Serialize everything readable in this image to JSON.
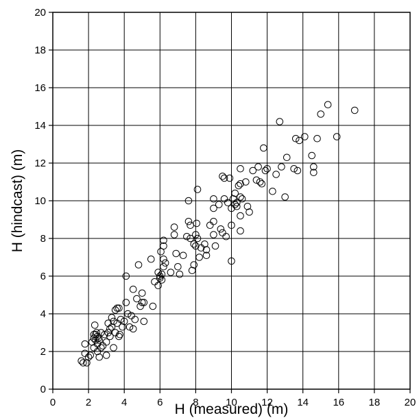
{
  "chart_data": {
    "type": "scatter",
    "title": "",
    "xlabel": "H (measured) (m)",
    "ylabel": "H (hindcast) (m)",
    "xlim": [
      0,
      20
    ],
    "ylim": [
      0,
      20
    ],
    "xticks": [
      "0",
      "2",
      "4",
      "6",
      "8",
      "10",
      "12",
      "14",
      "16",
      "18",
      "20"
    ],
    "yticks": [
      "0",
      "2",
      "4",
      "6",
      "8",
      "10",
      "12",
      "14",
      "16",
      "18",
      "20"
    ],
    "grid": true,
    "marker": "open-circle",
    "colors": {
      "axis": "#000000",
      "grid": "#000000",
      "marker": "#000000"
    },
    "points": [
      [
        1.6,
        1.5
      ],
      [
        1.7,
        1.4
      ],
      [
        1.8,
        1.9
      ],
      [
        1.8,
        2.4
      ],
      [
        1.9,
        1.4
      ],
      [
        2.0,
        1.7
      ],
      [
        2.1,
        1.8
      ],
      [
        2.2,
        2.5
      ],
      [
        2.3,
        2.9
      ],
      [
        2.3,
        2.7
      ],
      [
        2.3,
        2.2
      ],
      [
        2.35,
        3.4
      ],
      [
        2.4,
        2.9
      ],
      [
        2.4,
        2.6
      ],
      [
        2.45,
        3.0
      ],
      [
        2.5,
        2.0
      ],
      [
        2.5,
        2.4
      ],
      [
        2.5,
        2.8
      ],
      [
        2.55,
        2.7
      ],
      [
        2.6,
        1.7
      ],
      [
        2.6,
        2.6
      ],
      [
        2.7,
        3.0
      ],
      [
        2.7,
        2.2
      ],
      [
        2.8,
        2.3
      ],
      [
        2.9,
        2.9
      ],
      [
        3.0,
        1.8
      ],
      [
        3.0,
        2.5
      ],
      [
        3.1,
        3.5
      ],
      [
        3.1,
        3.0
      ],
      [
        3.2,
        3.2
      ],
      [
        3.2,
        2.8
      ],
      [
        3.3,
        3.8
      ],
      [
        3.3,
        3.3
      ],
      [
        3.4,
        2.2
      ],
      [
        3.4,
        3.6
      ],
      [
        3.5,
        3.0
      ],
      [
        3.5,
        4.2
      ],
      [
        3.6,
        4.3
      ],
      [
        3.6,
        3.5
      ],
      [
        3.7,
        4.3
      ],
      [
        3.7,
        2.8
      ],
      [
        3.75,
        2.9
      ],
      [
        3.8,
        3.7
      ],
      [
        3.9,
        3.3
      ],
      [
        4.0,
        3.6
      ],
      [
        4.1,
        6.0
      ],
      [
        4.1,
        4.6
      ],
      [
        4.2,
        4.0
      ],
      [
        4.3,
        3.3
      ],
      [
        4.4,
        3.9
      ],
      [
        4.5,
        3.2
      ],
      [
        4.5,
        5.3
      ],
      [
        4.6,
        3.7
      ],
      [
        4.7,
        4.8
      ],
      [
        4.8,
        6.6
      ],
      [
        4.9,
        4.4
      ],
      [
        5.0,
        4.6
      ],
      [
        5.0,
        5.1
      ],
      [
        5.1,
        3.6
      ],
      [
        5.1,
        4.6
      ],
      [
        5.5,
        6.9
      ],
      [
        5.6,
        4.4
      ],
      [
        5.7,
        5.7
      ],
      [
        5.9,
        5.5
      ],
      [
        5.9,
        6.2
      ],
      [
        6.0,
        6.0
      ],
      [
        6.0,
        5.9
      ],
      [
        6.05,
        7.3
      ],
      [
        6.1,
        5.8
      ],
      [
        6.1,
        6.1
      ],
      [
        6.2,
        6.5
      ],
      [
        6.2,
        7.6
      ],
      [
        6.2,
        6.9
      ],
      [
        6.2,
        7.9
      ],
      [
        6.3,
        6.7
      ],
      [
        6.6,
        6.2
      ],
      [
        6.8,
        8.2
      ],
      [
        6.8,
        8.6
      ],
      [
        6.9,
        7.2
      ],
      [
        7.0,
        6.5
      ],
      [
        7.1,
        6.1
      ],
      [
        7.3,
        7.1
      ],
      [
        7.5,
        8.1
      ],
      [
        7.6,
        10.0
      ],
      [
        7.6,
        8.9
      ],
      [
        7.7,
        8.7
      ],
      [
        7.7,
        8.0
      ],
      [
        7.8,
        6.3
      ],
      [
        7.9,
        7.7
      ],
      [
        7.9,
        6.6
      ],
      [
        8.0,
        7.6
      ],
      [
        8.0,
        8.2
      ],
      [
        8.05,
        8.8
      ],
      [
        8.1,
        8.0
      ],
      [
        8.1,
        10.6
      ],
      [
        8.2,
        7.0
      ],
      [
        8.3,
        7.5
      ],
      [
        8.5,
        7.7
      ],
      [
        8.6,
        7.1
      ],
      [
        8.6,
        7.4
      ],
      [
        8.8,
        8.7
      ],
      [
        9.0,
        9.6
      ],
      [
        9.0,
        10.1
      ],
      [
        9.0,
        8.9
      ],
      [
        9.0,
        8.2
      ],
      [
        9.1,
        7.6
      ],
      [
        9.3,
        9.8
      ],
      [
        9.4,
        8.5
      ],
      [
        9.5,
        11.3
      ],
      [
        9.5,
        8.3
      ],
      [
        9.6,
        11.2
      ],
      [
        9.6,
        10.1
      ],
      [
        9.7,
        8.1
      ],
      [
        9.8,
        9.9
      ],
      [
        9.9,
        11.2
      ],
      [
        10.0,
        8.7
      ],
      [
        10.0,
        9.6
      ],
      [
        10.0,
        6.8
      ],
      [
        10.1,
        10.1
      ],
      [
        10.2,
        10.4
      ],
      [
        10.2,
        9.8
      ],
      [
        10.3,
        9.7
      ],
      [
        10.3,
        9.9
      ],
      [
        10.4,
        10.8
      ],
      [
        10.5,
        9.2
      ],
      [
        10.5,
        8.4
      ],
      [
        10.5,
        10.2
      ],
      [
        10.5,
        10.9
      ],
      [
        10.5,
        11.7
      ],
      [
        10.6,
        10.1
      ],
      [
        10.8,
        11.0
      ],
      [
        10.9,
        9.7
      ],
      [
        11.0,
        9.4
      ],
      [
        11.2,
        11.6
      ],
      [
        11.4,
        11.1
      ],
      [
        11.5,
        11.8
      ],
      [
        11.6,
        11.0
      ],
      [
        11.7,
        10.9
      ],
      [
        11.8,
        12.8
      ],
      [
        11.9,
        11.6
      ],
      [
        12.0,
        11.7
      ],
      [
        12.3,
        10.5
      ],
      [
        12.5,
        11.4
      ],
      [
        12.7,
        14.2
      ],
      [
        12.8,
        11.8
      ],
      [
        13.0,
        10.2
      ],
      [
        13.1,
        12.3
      ],
      [
        13.5,
        11.7
      ],
      [
        13.6,
        13.3
      ],
      [
        13.7,
        11.6
      ],
      [
        13.8,
        13.2
      ],
      [
        14.1,
        13.4
      ],
      [
        14.5,
        12.4
      ],
      [
        14.6,
        11.8
      ],
      [
        14.6,
        11.5
      ],
      [
        14.8,
        13.3
      ],
      [
        15.0,
        14.6
      ],
      [
        15.4,
        15.1
      ],
      [
        15.9,
        13.4
      ],
      [
        16.9,
        14.8
      ]
    ]
  }
}
